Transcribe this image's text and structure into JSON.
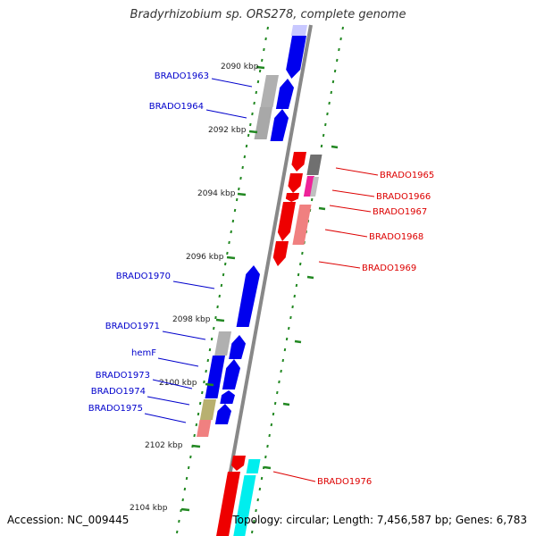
{
  "header": {
    "title": "Bradyrhizobium sp. ORS278, complete genome"
  },
  "footer": {
    "accession": "Accession: NC_009445",
    "stats": "Topology: circular; Length: 7,456,587 bp; Genes: 6,783"
  },
  "colors": {
    "forward_label": "#0000cc",
    "reverse_label": "#dd0000",
    "forward_gene": "#0000ee",
    "reverse_gene": "#ee0000",
    "hypothetical_gene": "#b0b0b0",
    "scale_ticks": "#228822",
    "backbone": "#888888"
  },
  "scale": [
    {
      "label": "2090 kbp"
    },
    {
      "label": "2092 kbp"
    },
    {
      "label": "2094 kbp"
    },
    {
      "label": "2096 kbp"
    },
    {
      "label": "2098 kbp"
    },
    {
      "label": "2100 kbp"
    },
    {
      "label": "2102 kbp"
    },
    {
      "label": "2104 kbp"
    }
  ],
  "genes_forward": [
    {
      "label": "BRADO1963"
    },
    {
      "label": "BRADO1964"
    },
    {
      "label": "BRADO1970"
    },
    {
      "label": "BRADO1971"
    },
    {
      "label": "hemF"
    },
    {
      "label": "BRADO1973"
    },
    {
      "label": "BRADO1974"
    },
    {
      "label": "BRADO1975"
    }
  ],
  "genes_reverse": [
    {
      "label": "BRADO1965"
    },
    {
      "label": "BRADO1966"
    },
    {
      "label": "BRADO1967"
    },
    {
      "label": "BRADO1968"
    },
    {
      "label": "BRADO1969"
    },
    {
      "label": "BRADO1976"
    }
  ]
}
